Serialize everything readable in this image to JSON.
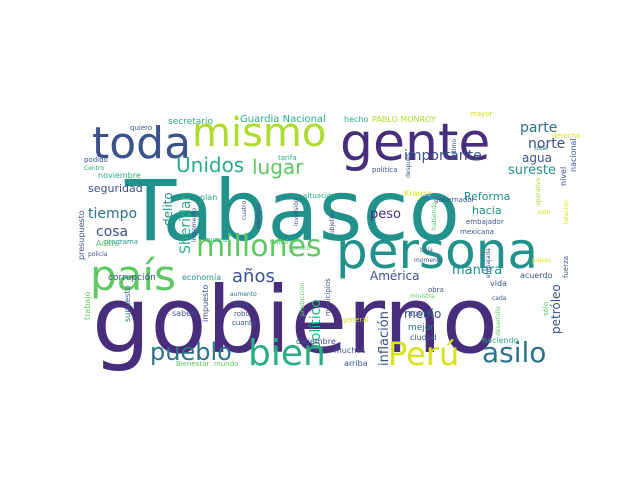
{
  "palette": {
    "dark_purple": "#472d7b",
    "indigo": "#3b528b",
    "steel": "#2c728e",
    "teal": "#21918c",
    "green": "#28ae80",
    "light_green": "#5ec962",
    "lime": "#addc30",
    "yellow": "#d8e219",
    "deep": "#440154"
  },
  "words": [
    {
      "text": "Tabasco",
      "color": "teal"
    },
    {
      "text": "gobierno",
      "color": "dark_purple"
    },
    {
      "text": "gente",
      "color": "dark_purple"
    },
    {
      "text": "persona",
      "color": "teal"
    },
    {
      "text": "país",
      "color": "light_green"
    },
    {
      "text": "millones",
      "color": "light_green"
    },
    {
      "text": "mismo",
      "color": "lime"
    },
    {
      "text": "toda",
      "color": "indigo"
    },
    {
      "text": "bien",
      "color": "green"
    },
    {
      "text": "Perú",
      "color": "yellow"
    },
    {
      "text": "asilo",
      "color": "steel"
    },
    {
      "text": "pueblo",
      "color": "steel"
    },
    {
      "text": "Unidos",
      "color": "green"
    },
    {
      "text": "lugar",
      "color": "light_green"
    },
    {
      "text": "años",
      "color": "indigo"
    },
    {
      "text": "tiempo",
      "color": "steel"
    },
    {
      "text": "cosa",
      "color": "indigo"
    },
    {
      "text": "parte",
      "color": "steel"
    },
    {
      "text": "norte",
      "color": "indigo"
    },
    {
      "text": "sureste",
      "color": "teal"
    },
    {
      "text": "agua",
      "color": "indigo"
    },
    {
      "text": "importante",
      "color": "indigo"
    },
    {
      "text": "Sheridan",
      "color": "green"
    },
    {
      "text": "delito",
      "color": "teal"
    },
    {
      "text": "político",
      "color": "green"
    },
    {
      "text": "manera",
      "color": "teal"
    },
    {
      "text": "inflación",
      "color": "indigo"
    },
    {
      "text": "medio",
      "color": "indigo"
    },
    {
      "text": "peso",
      "color": "dark_purple"
    },
    {
      "text": "Reforma",
      "color": "teal"
    },
    {
      "text": "América",
      "color": "indigo"
    },
    {
      "text": "hacia",
      "color": "teal"
    },
    {
      "text": "petróleo",
      "color": "indigo"
    },
    {
      "text": "seguridad",
      "color": "indigo"
    },
    {
      "text": "Guardia Nacional",
      "color": "green"
    },
    {
      "text": "secretario",
      "color": "green"
    },
    {
      "text": "PABLO MONROY",
      "color": "lime"
    },
    {
      "text": "hecho",
      "color": "green"
    },
    {
      "text": "mayor",
      "color": "yellow"
    },
    {
      "text": "quiero",
      "color": "indigo"
    },
    {
      "text": "tarifa",
      "color": "green"
    },
    {
      "text": "podido",
      "color": "indigo"
    },
    {
      "text": "Centro",
      "color": "green"
    },
    {
      "text": "noviembre",
      "color": "green"
    },
    {
      "text": "presupuesto",
      "color": "indigo"
    },
    {
      "text": "corrupción",
      "color": "indigo"
    },
    {
      "text": "economía",
      "color": "teal"
    },
    {
      "text": "programa",
      "color": "teal"
    },
    {
      "text": "Adán",
      "color": "light_green"
    },
    {
      "text": "policía",
      "color": "indigo"
    },
    {
      "text": "trabajo",
      "color": "light_green"
    },
    {
      "text": "supuesto",
      "color": "steel"
    },
    {
      "text": "saben",
      "color": "indigo"
    },
    {
      "text": "impuesto",
      "color": "indigo"
    },
    {
      "text": "aumento",
      "color": "steel"
    },
    {
      "text": "sino",
      "color": "indigo"
    },
    {
      "text": "robo",
      "color": "indigo"
    },
    {
      "text": "cuanto",
      "color": "indigo"
    },
    {
      "text": "Bienestar",
      "color": "light_green"
    },
    {
      "text": "mundo",
      "color": "light_green"
    },
    {
      "text": "diciembre",
      "color": "indigo"
    },
    {
      "text": "muchas",
      "color": "indigo"
    },
    {
      "text": "arriba",
      "color": "indigo"
    },
    {
      "text": "mejor",
      "color": "steel"
    },
    {
      "text": "ciudad",
      "color": "indigo"
    },
    {
      "text": "apoyo",
      "color": "indigo"
    },
    {
      "text": "municipios",
      "color": "indigo"
    },
    {
      "text": "producción",
      "color": "light_green"
    },
    {
      "text": "general",
      "color": "yellow"
    },
    {
      "text": "haciendo",
      "color": "green"
    },
    {
      "text": "desarrollo",
      "color": "light_green"
    },
    {
      "text": "ministra",
      "color": "light_green"
    },
    {
      "text": "cada",
      "color": "indigo"
    },
    {
      "text": "obra",
      "color": "indigo"
    },
    {
      "text": "vida",
      "color": "indigo"
    },
    {
      "text": "acuerdo",
      "color": "indigo"
    },
    {
      "text": "embajada",
      "color": "indigo"
    },
    {
      "text": "fuerza",
      "color": "indigo"
    },
    {
      "text": "sólo",
      "color": "light_green"
    },
    {
      "text": "baja",
      "color": "steel"
    },
    {
      "text": "momento",
      "color": "indigo"
    },
    {
      "text": "mexicana",
      "color": "indigo"
    },
    {
      "text": "embajador",
      "color": "indigo"
    },
    {
      "text": "gobernador",
      "color": "indigo"
    },
    {
      "text": "Krauze",
      "color": "yellow"
    },
    {
      "text": "política",
      "color": "indigo"
    },
    {
      "text": "último",
      "color": "indigo"
    },
    {
      "text": "situación",
      "color": "green"
    },
    {
      "text": "plan",
      "color": "green"
    },
    {
      "text": "ejemplo",
      "color": "indigo"
    },
    {
      "text": "cuatro",
      "color": "indigo"
    },
    {
      "text": "nunca",
      "color": "green"
    },
    {
      "text": "tratado",
      "color": "light_green"
    },
    {
      "text": "precio",
      "color": "light_green"
    },
    {
      "text": "inversión",
      "color": "indigo"
    },
    {
      "text": "objetivo",
      "color": "indigo"
    },
    {
      "text": "después",
      "color": "indigo"
    },
    {
      "text": "incremento",
      "color": "indigo"
    },
    {
      "text": "habiendo",
      "color": "light_green"
    },
    {
      "text": "derecho",
      "color": "yellow"
    },
    {
      "text": "total",
      "color": "steel"
    },
    {
      "text": "nivel",
      "color": "indigo"
    },
    {
      "text": "nacional",
      "color": "indigo"
    },
    {
      "text": "operativo",
      "color": "lime"
    },
    {
      "text": "sido",
      "color": "yellow"
    },
    {
      "text": "relación",
      "color": "yellow"
    },
    {
      "text": "países",
      "color": "yellow"
    }
  ]
}
